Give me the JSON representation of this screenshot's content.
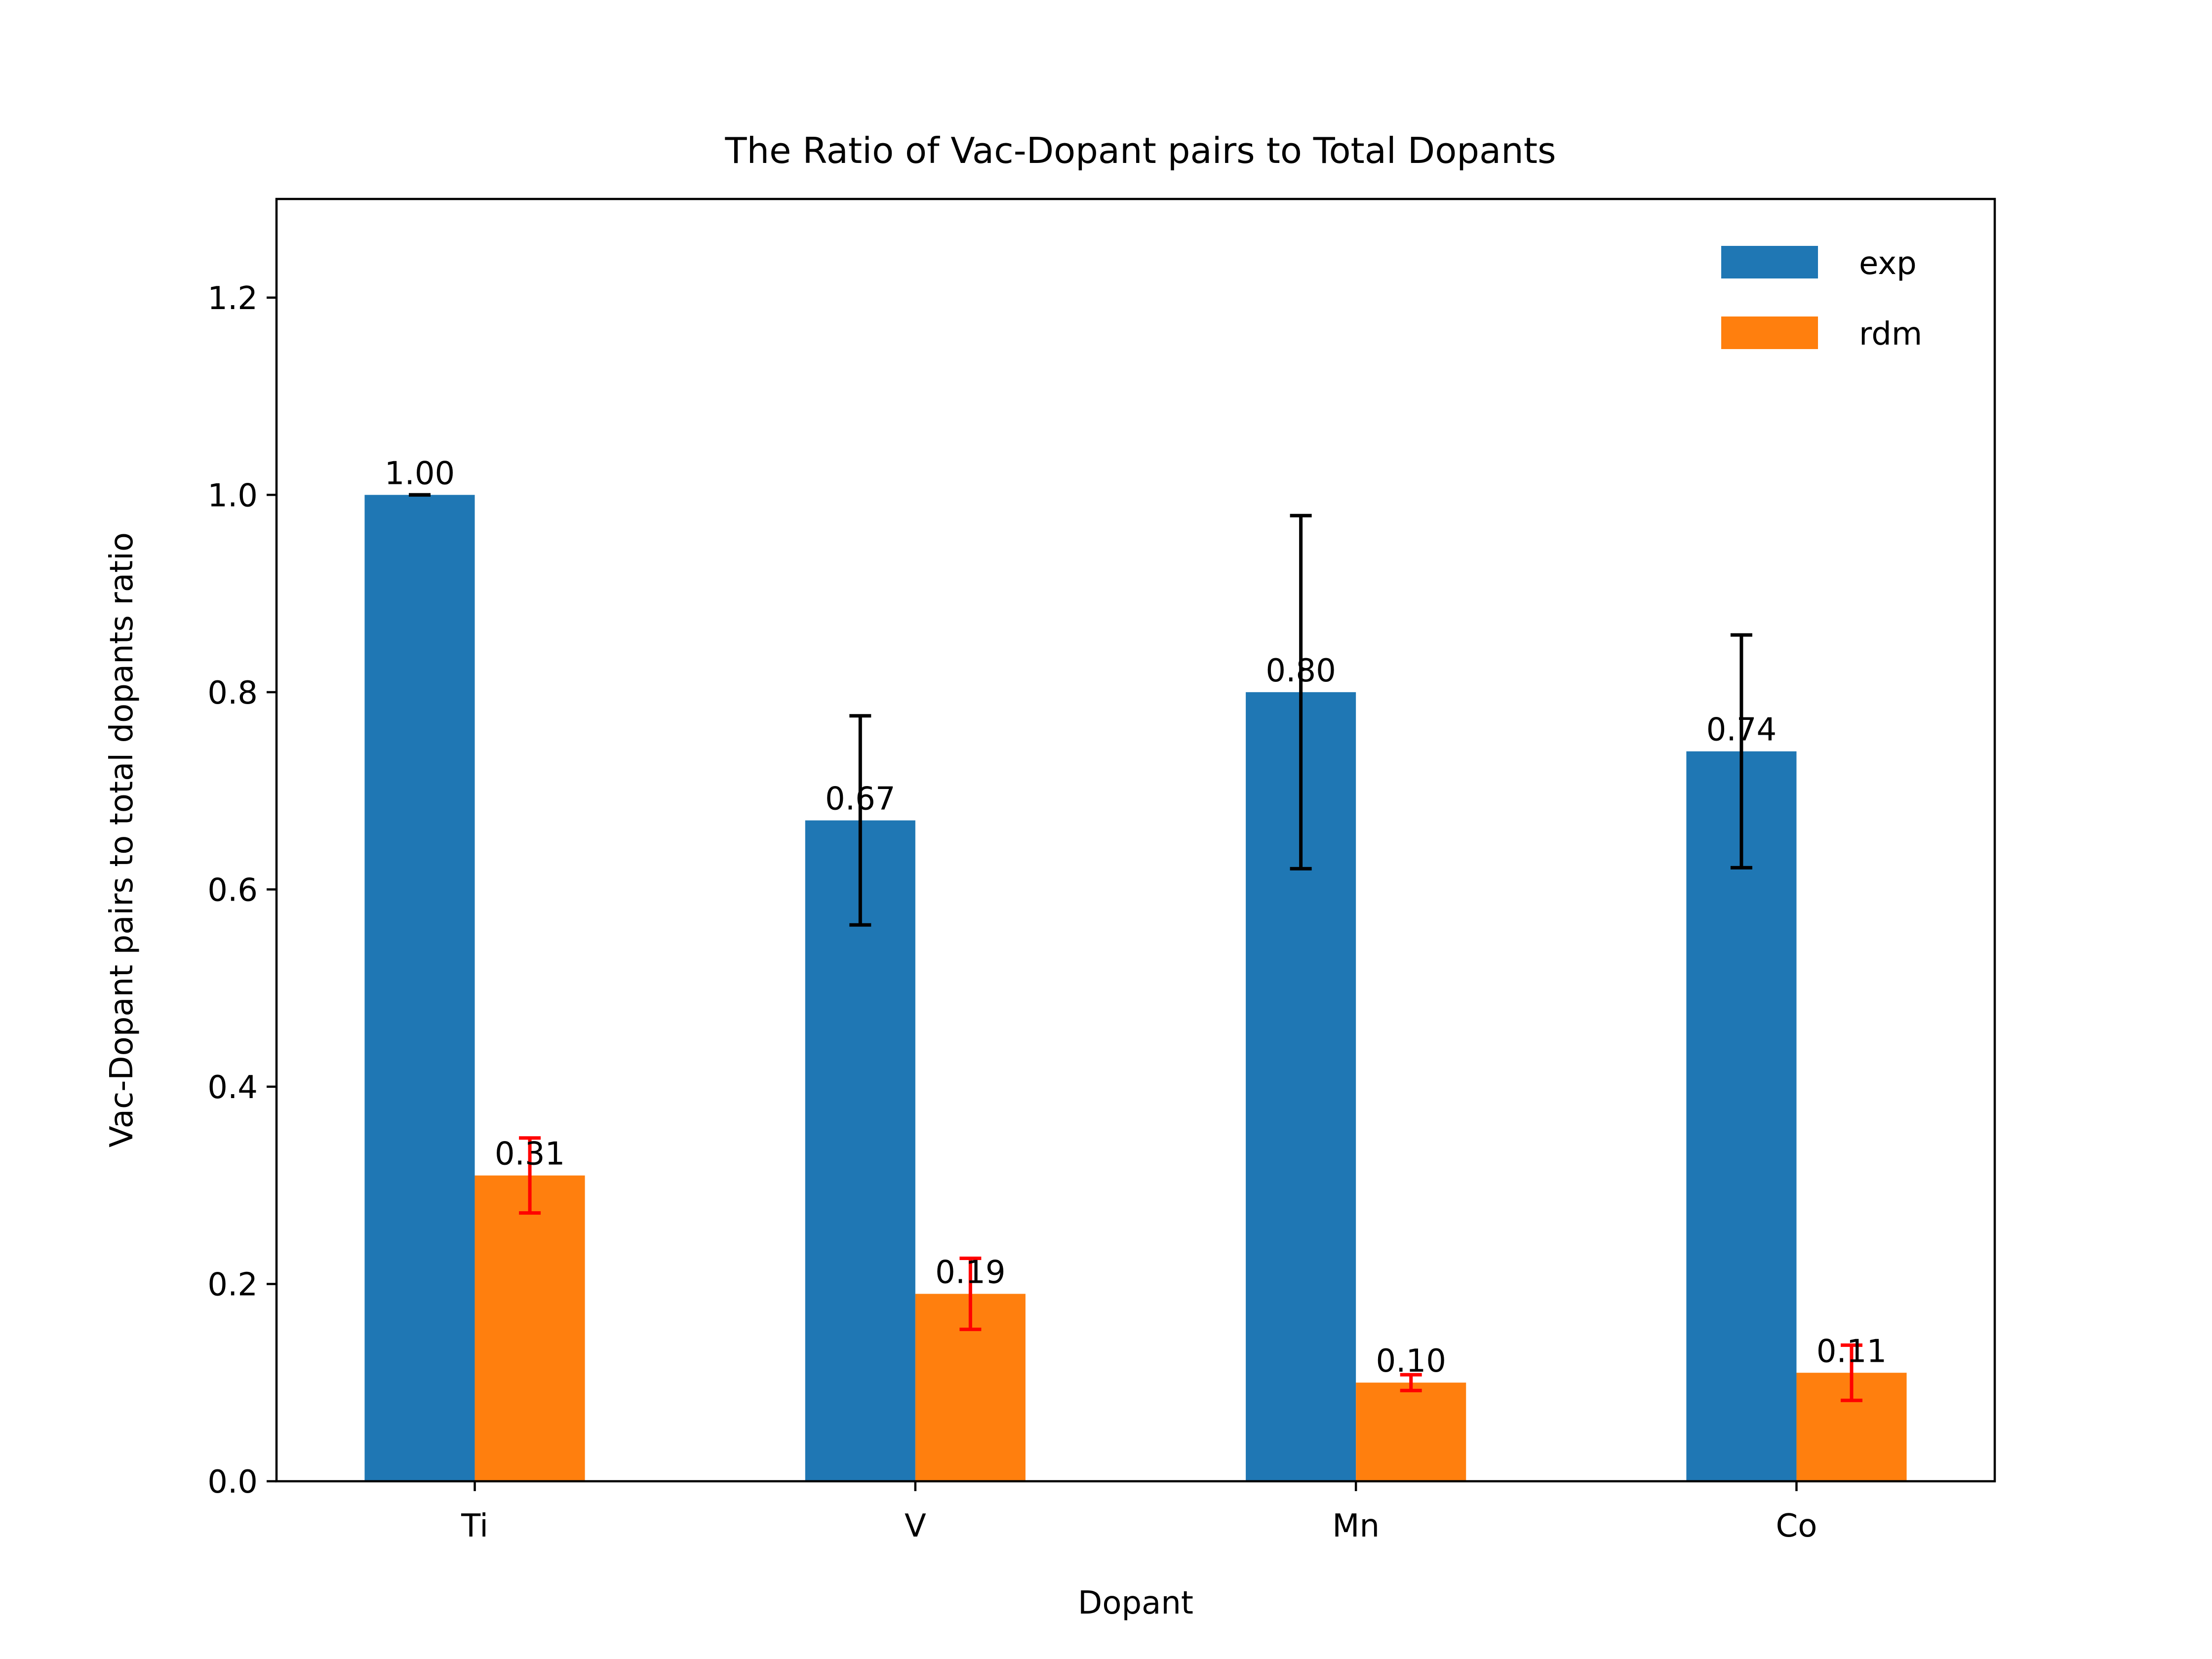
{
  "chart_data": {
    "type": "bar",
    "title": "The Ratio of Vac-Dopant pairs to Total Dopants",
    "xlabel": "Dopant",
    "ylabel": "Vac-Dopant pairs to total dopants ratio",
    "categories": [
      "Ti",
      "V",
      "Mn",
      "Co"
    ],
    "ylim": [
      0,
      1.3
    ],
    "yticks": [
      0.0,
      0.2,
      0.4,
      0.6,
      0.8,
      1.0,
      1.2
    ],
    "ytick_labels": [
      "0.0",
      "0.2",
      "0.4",
      "0.6",
      "0.8",
      "1.0",
      "1.2"
    ],
    "grid": false,
    "legend": "top-right",
    "series": [
      {
        "name": "exp",
        "color": "#1f77b4",
        "error_color": "#000000",
        "values": [
          1.0,
          0.67,
          0.8,
          0.74
        ],
        "errors": [
          0.0,
          0.106,
          0.179,
          0.118
        ],
        "data_labels": [
          "1.00",
          "0.67",
          "0.80",
          "0.74"
        ]
      },
      {
        "name": "rdm",
        "color": "#ff7f0e",
        "error_color": "#ff0000",
        "values": [
          0.31,
          0.19,
          0.1,
          0.11
        ],
        "errors": [
          0.038,
          0.036,
          0.008,
          0.028
        ],
        "data_labels": [
          "0.31",
          "0.19",
          "0.10",
          "0.11"
        ]
      }
    ]
  }
}
